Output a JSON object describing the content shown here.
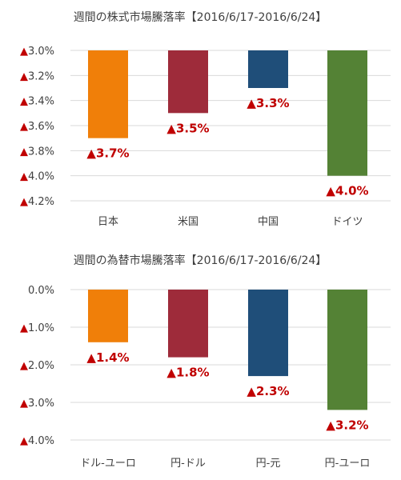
{
  "chart_data": [
    {
      "type": "bar",
      "title": "週間の株式市場騰落率【2016/6/17-2016/6/24】",
      "categories": [
        "日本",
        "米国",
        "中国",
        "ドイツ"
      ],
      "values": [
        -3.7,
        -3.5,
        -3.3,
        -4.0
      ],
      "data_labels": [
        "▲3.7%",
        "▲3.5%",
        "▲3.3%",
        "▲4.0%"
      ],
      "colors": [
        "#f07f09",
        "#9e2b3a",
        "#1f4e79",
        "#548235"
      ],
      "ylim": [
        -4.2,
        -3.0
      ],
      "yticks": [
        -3.0,
        -3.2,
        -3.4,
        -3.6,
        -3.8,
        -4.0,
        -4.2
      ],
      "ytick_labels": [
        "▲3.0%",
        "▲3.2%",
        "▲3.4%",
        "▲3.6%",
        "▲3.8%",
        "▲4.0%",
        "▲4.2%"
      ],
      "grid": true
    },
    {
      "type": "bar",
      "title": "週間の為替市場騰落率【2016/6/17-2016/6/24】",
      "categories": [
        "ドル-ユーロ",
        "円-ドル",
        "円-元",
        "円-ユーロ"
      ],
      "values": [
        -1.4,
        -1.8,
        -2.3,
        -3.2
      ],
      "data_labels": [
        "▲1.4%",
        "▲1.8%",
        "▲2.3%",
        "▲3.2%"
      ],
      "colors": [
        "#f07f09",
        "#9e2b3a",
        "#1f4e79",
        "#548235"
      ],
      "ylim": [
        -4.0,
        0.0
      ],
      "yticks": [
        0.0,
        -1.0,
        -2.0,
        -3.0,
        -4.0
      ],
      "ytick_labels": [
        "0.0%",
        "▲1.0%",
        "▲2.0%",
        "▲3.0%",
        "▲4.0%"
      ],
      "grid": true
    }
  ]
}
